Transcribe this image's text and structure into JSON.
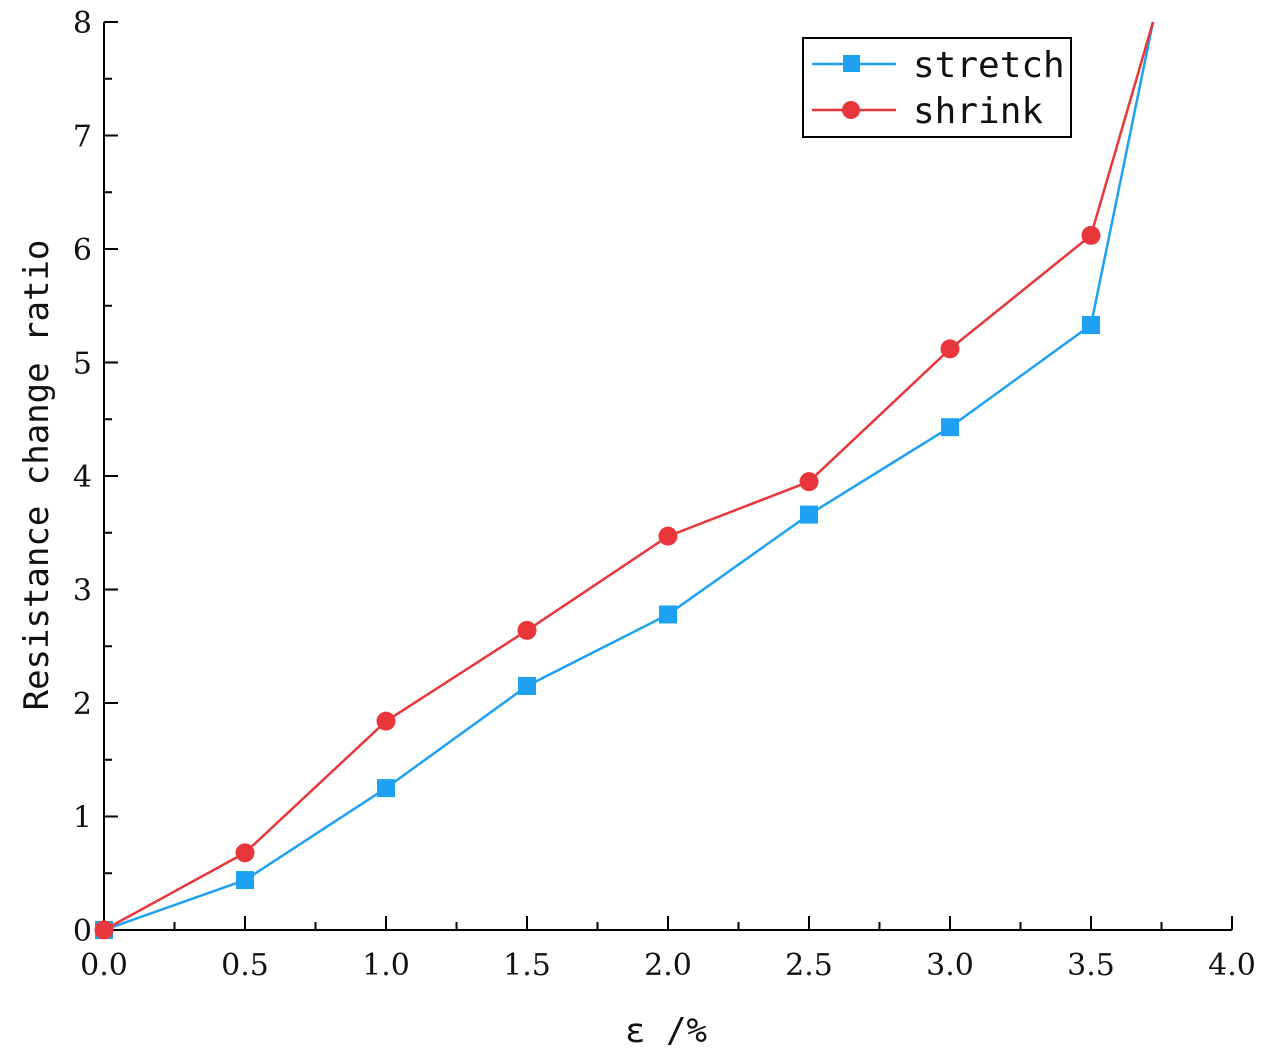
{
  "chart_data": {
    "type": "line",
    "title": "",
    "xlabel": "ε /%",
    "ylabel": "Resistance change ratio",
    "xlim": [
      0,
      4
    ],
    "ylim": [
      0,
      8
    ],
    "x_ticks": [
      "0.0",
      "0.5",
      "1.0",
      "1.5",
      "2.0",
      "2.5",
      "3.0",
      "3.5",
      "4.0"
    ],
    "y_ticks": [
      "0",
      "1",
      "2",
      "3",
      "4",
      "5",
      "6",
      "7",
      "8"
    ],
    "legend_position": "top-right",
    "series": [
      {
        "name": "stretch",
        "color": "#1ea1f2",
        "marker": "square",
        "x": [
          0.0,
          0.5,
          1.0,
          1.5,
          2.0,
          2.5,
          3.0,
          3.5,
          3.72
        ],
        "y": [
          0.0,
          0.44,
          1.25,
          2.15,
          2.78,
          3.66,
          4.43,
          5.33,
          8.0
        ],
        "marker_count": 8
      },
      {
        "name": "shrink",
        "color": "#e8363a",
        "marker": "circle",
        "x": [
          0.0,
          0.5,
          1.0,
          1.5,
          2.0,
          2.5,
          3.0,
          3.5,
          3.72
        ],
        "y": [
          0.0,
          0.68,
          1.84,
          2.64,
          3.47,
          3.95,
          5.12,
          6.12,
          8.0
        ],
        "marker_count": 8
      }
    ]
  }
}
